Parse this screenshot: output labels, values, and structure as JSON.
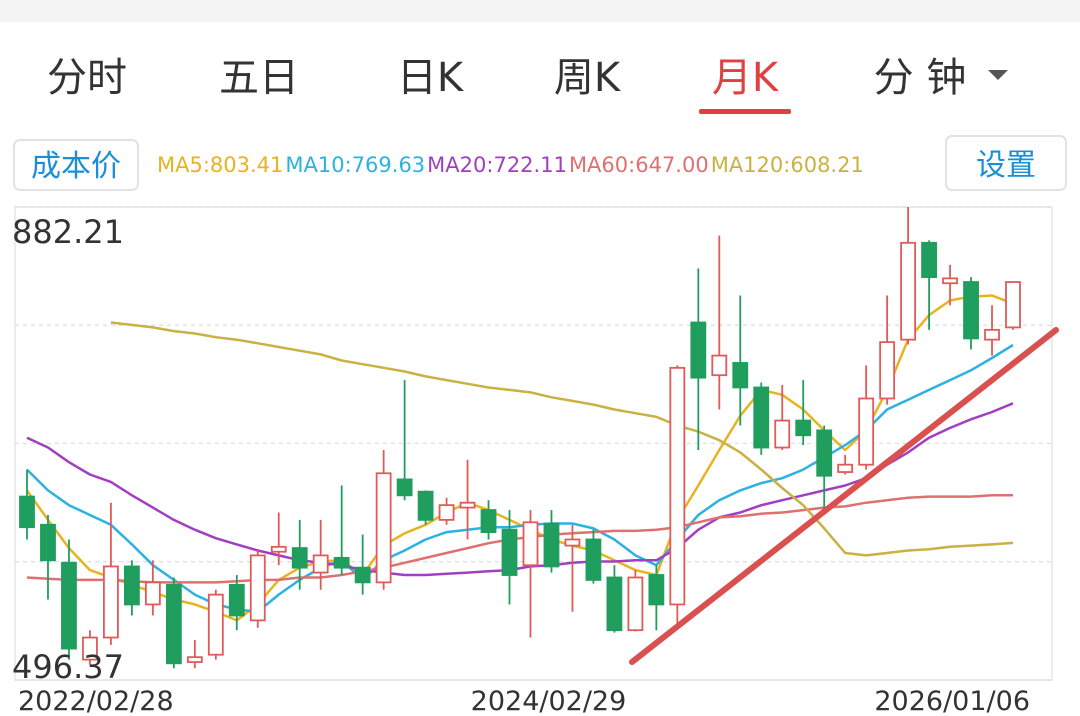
{
  "tabs": [
    "分时",
    "五日",
    "日K",
    "周K",
    "月K",
    "分 钟"
  ],
  "active_tab": 4,
  "buttons": {
    "cost": "成本价",
    "settings": "设置"
  },
  "chart_data": {
    "type": "candlestick",
    "categories": [
      "2022/02/28",
      null,
      null,
      null,
      null,
      null,
      null,
      null,
      null,
      null,
      null,
      null,
      null,
      null,
      null,
      null,
      null,
      null,
      null,
      null,
      null,
      null,
      null,
      null,
      "2024/02/29",
      null,
      null,
      null,
      null,
      null,
      null,
      null,
      null,
      null,
      null,
      null,
      null,
      null,
      null,
      null,
      null,
      null,
      null,
      null,
      null,
      null,
      null,
      "2026/01/06"
    ],
    "open": [
      646,
      623,
      592,
      513,
      531,
      589,
      558,
      574,
      511,
      517,
      574,
      545,
      601,
      604,
      584,
      596,
      588,
      576,
      660,
      650,
      627,
      637,
      635,
      619,
      590,
      624,
      606,
      611,
      580,
      537,
      582,
      558,
      788,
      745,
      755,
      735,
      686,
      708,
      700,
      666,
      672,
      726,
      774,
      853,
      820,
      821,
      774,
      784
    ],
    "high": [
      668,
      631,
      611,
      537,
      641,
      594,
      594,
      580,
      529,
      570,
      582,
      602,
      633,
      627,
      627,
      655,
      615,
      684,
      741,
      651,
      645,
      676,
      643,
      635,
      635,
      635,
      623,
      619,
      590,
      586,
      590,
      753,
      832,
      859,
      810,
      739,
      737,
      741,
      704,
      680,
      753,
      810,
      882.21,
      855,
      835,
      825,
      802,
      821
    ],
    "low": [
      611,
      562,
      513,
      509,
      525,
      549,
      549,
      506,
      506,
      513,
      537,
      539,
      590,
      570,
      570,
      582,
      566,
      570,
      643,
      623,
      623,
      611,
      611,
      558,
      531,
      584,
      552,
      575,
      535,
      536,
      537,
      541,
      684,
      717,
      704,
      680,
      684,
      688,
      635,
      664,
      668,
      721,
      770,
      782,
      802,
      766,
      761,
      782
    ],
    "close": [
      621,
      594,
      522,
      531,
      589,
      558,
      576,
      510,
      515,
      566,
      549,
      598,
      605,
      588,
      598,
      588,
      576,
      665,
      647,
      627,
      639,
      641,
      617,
      582,
      625,
      589,
      611,
      578,
      537,
      580,
      558,
      751,
      743,
      761,
      735,
      686,
      708,
      696,
      663,
      672,
      726,
      772,
      853,
      825,
      824,
      775,
      782,
      821
    ],
    "up_color": "#e05a5a",
    "down_color": "#1f9e5e",
    "series": [
      {
        "name": "MA5:803.41",
        "color": "#e9b21f",
        "values": [
          651,
          627,
          604,
          586,
          580,
          574,
          568,
          562,
          558,
          552,
          545,
          558,
          578,
          588,
          593,
          594,
          582,
          606,
          616,
          623,
          633,
          641,
          635,
          627,
          619,
          611,
          606,
          602,
          594,
          586,
          582,
          627,
          655,
          684,
          712,
          733,
          729,
          717,
          700,
          684,
          700,
          733,
          774,
          794,
          806,
          809,
          810,
          803.41
        ]
      },
      {
        "name": "MA10:769.63",
        "color": "#2bb2e2",
        "values": [
          668,
          651,
          639,
          631,
          623,
          607,
          590,
          578,
          566,
          558,
          554,
          552,
          566,
          578,
          588,
          594,
          578,
          594,
          602,
          611,
          617,
          619,
          621,
          621,
          623,
          624,
          624,
          620,
          611,
          598,
          590,
          611,
          631,
          643,
          651,
          657,
          661,
          668,
          678,
          688,
          700,
          717,
          725,
          733,
          741,
          749,
          759,
          769.63
        ]
      },
      {
        "name": "MA20:722.11",
        "color": "#a23ec2",
        "values": [
          694,
          686,
          674,
          664,
          658,
          647,
          637,
          627,
          619,
          612,
          607,
          602,
          598,
          594,
          592,
          590,
          586,
          584,
          582,
          582,
          583,
          584,
          585,
          586,
          589,
          590,
          592,
          593,
          593,
          594,
          594,
          604,
          619,
          629,
          633,
          639,
          643,
          647,
          651,
          655,
          661,
          672,
          682,
          694,
          702,
          709,
          715,
          722.11
        ]
      },
      {
        "name": "MA60:647.00",
        "color": "#e07070",
        "values": [
          580,
          579,
          578,
          578,
          578,
          577,
          576,
          576,
          576,
          576,
          577,
          578,
          578,
          580,
          580,
          582,
          585,
          588,
          592,
          596,
          600,
          604,
          608,
          611,
          613,
          615,
          616,
          617,
          618,
          618,
          619,
          621,
          625,
          629,
          630,
          632,
          633,
          635,
          637,
          638,
          641,
          643,
          645,
          646,
          646,
          646,
          647,
          647.0
        ]
      },
      {
        "name": "MA120:608.21",
        "color": "#c9b144",
        "values": [
          null,
          null,
          null,
          null,
          788,
          786,
          784,
          781,
          779,
          776,
          774,
          771,
          768,
          765,
          762,
          757,
          754,
          751,
          748,
          744,
          741,
          738,
          735,
          733,
          731,
          727,
          724,
          721,
          717,
          714,
          711,
          704,
          699,
          692,
          682,
          668,
          653,
          639,
          620,
          600,
          598,
          600,
          602,
          603,
          605,
          606,
          607,
          608.21
        ]
      }
    ],
    "ylim": [
      496.37,
      882.21
    ],
    "yticks": [
      496.37,
      {
        "value": 592.83,
        "label": null
      },
      {
        "value": 689.29,
        "label": null
      },
      {
        "value": 785.75,
        "label": null
      },
      882.21
    ],
    "grid": true
  }
}
